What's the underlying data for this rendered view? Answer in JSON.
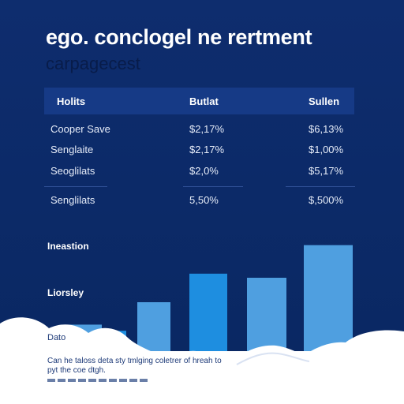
{
  "header": {
    "title": "ego. conclogel ne rertment",
    "subtitle": "carpagecest"
  },
  "table": {
    "columns": [
      "Holits",
      "Butlat",
      "Sullen"
    ],
    "rows": [
      [
        "Cooper Save",
        "$2,17%",
        "$6,13%"
      ],
      [
        "Senglaite",
        "$2,17%",
        "$1,00%"
      ],
      [
        "Seoglilats",
        "$2,0%",
        "$5,17%"
      ],
      [
        "Senglilats",
        "5,50%",
        "$,500%"
      ]
    ]
  },
  "labels": {
    "inneastion": "Ineastion",
    "liorsley": "Liorsley",
    "axis": "Dato"
  },
  "caption": "Can he taloss deta sty tmlging coletrer of hreah to pyt the coe dtgh.",
  "colors": {
    "background": "#0c2a68",
    "bar_light": "#4f9fe0",
    "bar_bright": "#1e8ee0"
  },
  "chart_data": {
    "type": "bar",
    "x": [
      1,
      2,
      3,
      4,
      5,
      6,
      7
    ],
    "values": [
      13,
      10,
      24,
      38,
      36,
      52,
      0
    ],
    "ylim": [
      0,
      60
    ],
    "title": "",
    "xlabel": "",
    "ylabel": "",
    "grid": false,
    "legend": "none"
  }
}
